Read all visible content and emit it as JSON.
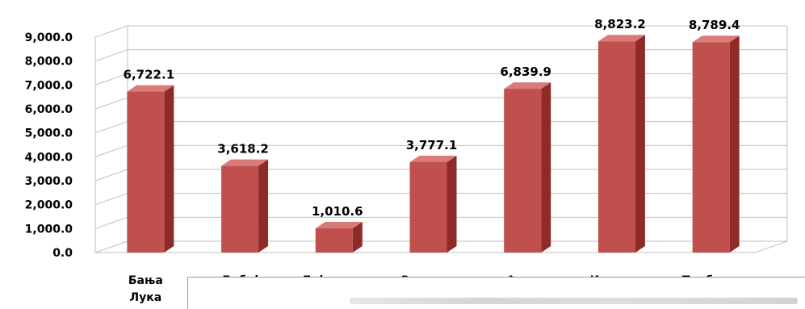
{
  "chart_data": {
    "type": "bar",
    "categories": [
      "Бања Лука",
      "Добој",
      "Бијељина",
      "Зворник",
      "Фоча",
      "Источно",
      "Требиње"
    ],
    "values": [
      6722.1,
      3618.2,
      1010.6,
      3777.1,
      6839.9,
      8823.2,
      8789.4
    ],
    "data_labels": [
      "6,722.1",
      "3,618.2",
      "1,010.6",
      "3,777.1",
      "6,839.9",
      "8,823.2",
      "8,789.4"
    ],
    "y_ticks": [
      "0.0",
      "1,000.0",
      "2,000.0",
      "3,000.0",
      "4,000.0",
      "5,000.0",
      "6,000.0",
      "7,000.0",
      "8,000.0",
      "9,000.0"
    ],
    "ylim": [
      0,
      9000
    ],
    "grid": true,
    "style": "3d-column",
    "bar_color": "#c0504d",
    "bar_side_color": "#8e2b28",
    "bar_top_color": "#d97b78",
    "title": "",
    "xlabel": "",
    "ylabel": ""
  }
}
